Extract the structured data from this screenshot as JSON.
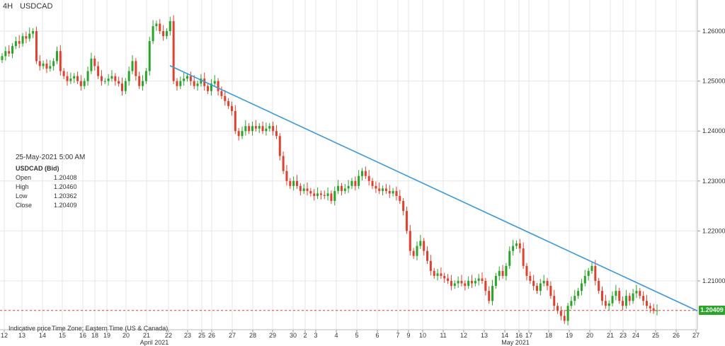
{
  "header": {
    "timeframe": "4H",
    "symbol": "USDCAD"
  },
  "ohlc_panel": {
    "timestamp": "25-May-2021 5:00 AM",
    "title": "USDCAD (Bid)",
    "open_label": "Open",
    "open": "1.20408",
    "high_label": "High",
    "high": "1.20460",
    "low_label": "Low",
    "low": "1.20362",
    "close_label": "Close",
    "close": "1.20409"
  },
  "footer": {
    "indicative": "Indicative price",
    "timezone": "Time Zone: Eastern Time (US & Canada)"
  },
  "current_price_label": "1.20409",
  "colors": {
    "up": "#2aa52a",
    "down": "#e0412f",
    "trendline": "#3a9ad9",
    "price_line": "#e0412f",
    "grid": "#e6e6e6"
  },
  "chart_data": {
    "type": "candlestick",
    "y_ticks": [
      "1.26000",
      "1.25000",
      "1.24000",
      "1.23000",
      "1.22000",
      "1.21000"
    ],
    "ylim": [
      1.2,
      1.265
    ],
    "x_ticks": [
      "12",
      "13",
      "14",
      "15",
      "16",
      "18",
      "19",
      "20",
      "21",
      "22",
      "23",
      "25",
      "26",
      "27",
      "28",
      "29",
      "30",
      "2",
      "3",
      "4",
      "5",
      "6",
      "7",
      "9",
      "10",
      "11",
      "12",
      "13",
      "14",
      "16",
      "17",
      "18",
      "19",
      "20",
      "21",
      "23",
      "24",
      "25",
      "26",
      "27"
    ],
    "month_labels": [
      "April 2021",
      "May 2021"
    ],
    "current_price": 1.20409,
    "trendline": {
      "from": {
        "x": "22",
        "y": 1.2531
      },
      "to": {
        "x": "27",
        "y": 1.204
      }
    },
    "closes": [
      1.255,
      1.256,
      1.2555,
      1.257,
      1.258,
      1.2575,
      1.259,
      1.2585,
      1.2595,
      1.26,
      1.254,
      1.253,
      1.2535,
      1.2525,
      1.253,
      1.254,
      1.256,
      1.252,
      1.251,
      1.25,
      1.2505,
      1.251,
      1.25,
      1.249,
      1.25,
      1.252,
      1.2545,
      1.253,
      1.251,
      1.25,
      1.25,
      1.2505,
      1.251,
      1.25,
      1.2495,
      1.248,
      1.25,
      1.252,
      1.254,
      1.251,
      1.249,
      1.25,
      1.252,
      1.258,
      1.261,
      1.2615,
      1.26,
      1.259,
      1.26,
      1.262,
      1.25,
      1.249,
      1.25,
      1.2505,
      1.251,
      1.25,
      1.249,
      1.2495,
      1.2505,
      1.249,
      1.248,
      1.2495,
      1.25,
      1.248,
      1.247,
      1.246,
      1.245,
      1.244,
      1.24,
      1.239,
      1.24,
      1.241,
      1.24,
      1.241,
      1.2405,
      1.241,
      1.24,
      1.2405,
      1.241,
      1.24,
      1.239,
      1.235,
      1.232,
      1.23,
      1.229,
      1.23,
      1.229,
      1.228,
      1.2285,
      1.228,
      1.2275,
      1.227,
      1.2275,
      1.2272,
      1.227,
      1.2275,
      1.226,
      1.228,
      1.229,
      1.228,
      1.2285,
      1.229,
      1.23,
      1.229,
      1.231,
      1.232,
      1.231,
      1.23,
      1.229,
      1.2285,
      1.228,
      1.2285,
      1.228,
      1.2275,
      1.228,
      1.227,
      1.226,
      1.224,
      1.22,
      1.216,
      1.215,
      1.217,
      1.218,
      1.216,
      1.214,
      1.212,
      1.211,
      1.2115,
      1.211,
      1.2105,
      1.21,
      1.209,
      1.2095,
      1.21,
      1.2095,
      1.209,
      1.21,
      1.2095,
      1.21,
      1.2105,
      1.21,
      1.208,
      1.206,
      1.209,
      1.211,
      1.212,
      1.211,
      1.213,
      1.216,
      1.217,
      1.2175,
      1.2165,
      1.213,
      1.211,
      1.21,
      1.209,
      1.208,
      1.2095,
      1.21,
      1.209,
      1.207,
      1.205,
      1.204,
      1.203,
      1.202,
      1.205,
      1.206,
      1.207,
      1.208,
      1.2095,
      1.211,
      1.212,
      1.213,
      1.21,
      1.208,
      1.206,
      1.205,
      1.2055,
      1.207,
      1.208,
      1.206,
      1.205,
      1.207,
      1.206,
      1.2075,
      1.208,
      1.207,
      1.206,
      1.205,
      1.2045,
      1.204,
      1.2041
    ]
  }
}
